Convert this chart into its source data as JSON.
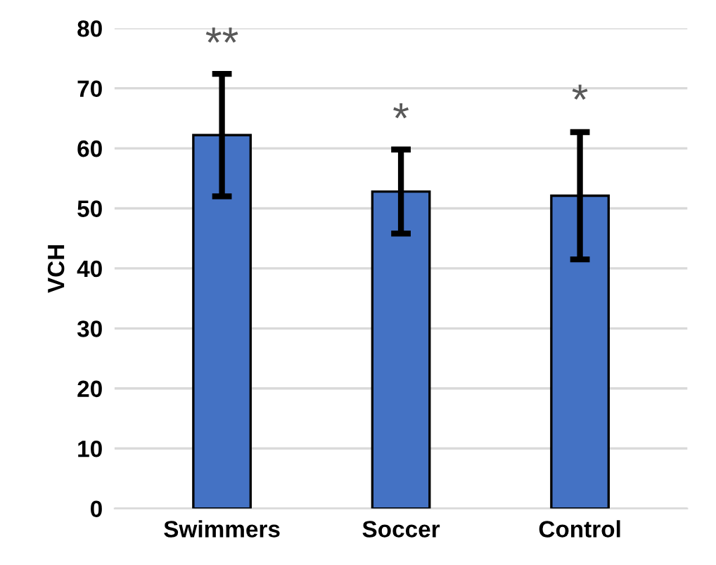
{
  "chart_data": {
    "type": "bar",
    "ylabel": "VCH",
    "categories": [
      "Swimmers",
      "Soccer",
      "Control"
    ],
    "values": [
      62.2,
      52.8,
      52.1
    ],
    "errors": [
      10.2,
      7.0,
      10.6
    ],
    "color": "#4472c4",
    "ylim": [
      0,
      80
    ],
    "yticks": [
      0,
      10,
      20,
      30,
      40,
      50,
      60,
      70,
      80
    ],
    "grid": "y",
    "annotations": [
      {
        "text": "**",
        "x": "Swimmers",
        "y": 72.4
      },
      {
        "text": "*",
        "x": "Soccer",
        "y": 59.8
      },
      {
        "text": "*",
        "x": "Control",
        "y": 62.9
      }
    ]
  }
}
